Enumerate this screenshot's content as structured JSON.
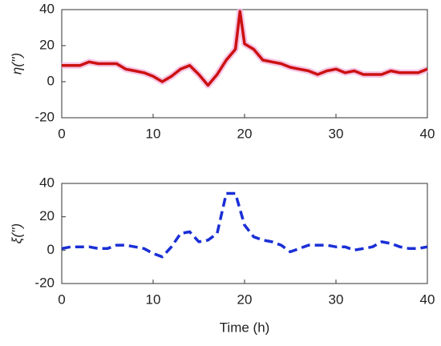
{
  "chart_data": [
    {
      "type": "line",
      "ylabel": "η('')",
      "x": [
        0,
        1,
        2,
        3,
        4,
        5,
        6,
        7,
        8,
        9,
        10,
        11,
        12,
        13,
        14,
        15,
        16,
        17,
        18,
        19,
        19.5,
        20,
        21,
        22,
        23,
        24,
        25,
        26,
        27,
        28,
        29,
        30,
        31,
        32,
        33,
        34,
        35,
        36,
        37,
        38,
        39,
        40
      ],
      "series": [
        {
          "color": "#cc1111",
          "halo": "#f4b8e0",
          "dashed": false,
          "values": [
            9,
            9,
            9,
            11,
            10,
            10,
            10,
            7,
            6,
            5,
            3,
            0,
            3,
            7,
            9,
            4,
            -2,
            4,
            12,
            18,
            39,
            21,
            18,
            12,
            11,
            10,
            8,
            7,
            6,
            4,
            6,
            7,
            5,
            6,
            4,
            4,
            4,
            6,
            5,
            5,
            5,
            7
          ]
        }
      ],
      "xlim": [
        0,
        40
      ],
      "xticks": [
        0,
        10,
        20,
        30,
        40
      ],
      "ylim": [
        -20,
        40
      ],
      "yticks": [
        -20,
        0,
        20,
        40
      ]
    },
    {
      "type": "line",
      "ylabel": "ξ('')",
      "xlabel": "Time (h)",
      "x": [
        0,
        1,
        2,
        3,
        4,
        5,
        6,
        7,
        8,
        9,
        10,
        11,
        12,
        13,
        14,
        15,
        16,
        17,
        18,
        19,
        20,
        21,
        22,
        23,
        24,
        25,
        26,
        27,
        28,
        29,
        30,
        31,
        32,
        33,
        34,
        35,
        36,
        37,
        38,
        39,
        40
      ],
      "series": [
        {
          "color": "#1a2fd6",
          "dashed": true,
          "values": [
            1,
            2,
            2,
            2,
            1,
            1,
            3,
            3,
            2,
            1,
            -2,
            -4,
            2,
            10,
            11,
            5,
            6,
            10,
            34,
            34,
            15,
            8,
            6,
            5,
            3,
            -1,
            1,
            3,
            3,
            3,
            2,
            2,
            0,
            1,
            2,
            5,
            4,
            2,
            1,
            1,
            2
          ]
        }
      ],
      "xlim": [
        0,
        40
      ],
      "xticks": [
        0,
        10,
        20,
        30,
        40
      ],
      "ylim": [
        -20,
        40
      ],
      "yticks": [
        -20,
        0,
        20,
        40
      ]
    }
  ]
}
